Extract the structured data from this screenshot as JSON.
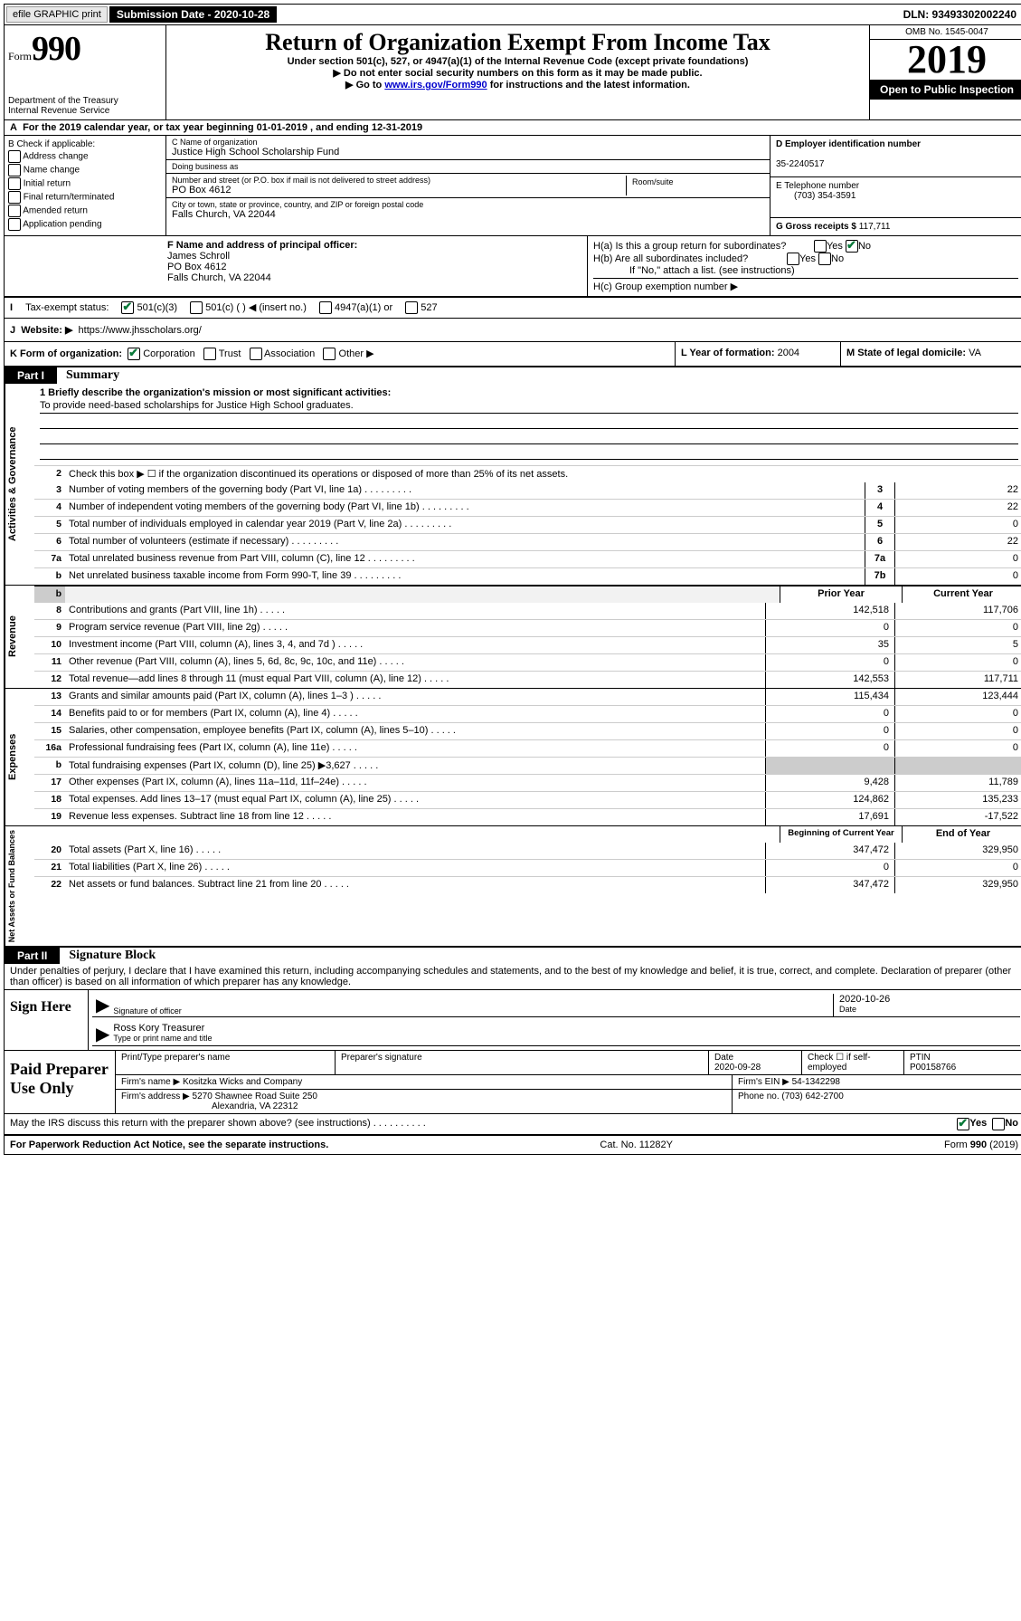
{
  "topbar": {
    "efile": "efile GRAPHIC print",
    "submission_label": "Submission Date - 2020-10-28",
    "dln": "DLN: 93493302002240"
  },
  "header": {
    "form_label": "Form",
    "form_num": "990",
    "dept1": "Department of the Treasury",
    "dept2": "Internal Revenue Service",
    "title": "Return of Organization Exempt From Income Tax",
    "subtitle": "Under section 501(c), 527, or 4947(a)(1) of the Internal Revenue Code (except private foundations)",
    "note1": "▶ Do not enter social security numbers on this form as it may be made public.",
    "note2_pre": "▶ Go to ",
    "note2_link": "www.irs.gov/Form990",
    "note2_post": " for instructions and the latest information.",
    "omb": "OMB No. 1545-0047",
    "year": "2019",
    "open": "Open to Public Inspection"
  },
  "period": "For the 2019 calendar year, or tax year beginning 01-01-2019    , and ending 12-31-2019",
  "sectionA_prefix": "A",
  "sectionB": {
    "label": "B Check if applicable:",
    "items": [
      "Address change",
      "Name change",
      "Initial return",
      "Final return/terminated",
      "Amended return",
      "Application pending"
    ]
  },
  "sectionC": {
    "name_label": "C Name of organization",
    "name": "Justice High School Scholarship Fund",
    "dba_label": "Doing business as",
    "dba": "",
    "addr_label": "Number and street (or P.O. box if mail is not delivered to street address)",
    "room_label": "Room/suite",
    "addr": "PO Box 4612",
    "city_label": "City or town, state or province, country, and ZIP or foreign postal code",
    "city": "Falls Church, VA  22044"
  },
  "sectionD": {
    "label": "D Employer identification number",
    "value": "35-2240517"
  },
  "sectionE": {
    "label": "E Telephone number",
    "value": "(703) 354-3591"
  },
  "sectionG": {
    "label": "G Gross receipts $",
    "value": "117,711"
  },
  "sectionF": {
    "label": "F  Name and address of principal officer:",
    "name": "James Schroll",
    "addr1": "PO Box 4612",
    "addr2": "Falls Church, VA  22044"
  },
  "sectionH": {
    "a": "H(a)  Is this a group return for subordinates?",
    "b": "H(b)  Are all subordinates included?",
    "note": "If \"No,\" attach a list. (see instructions)",
    "c": "H(c)  Group exemption number ▶",
    "yes": "Yes",
    "no": "No"
  },
  "sectionI": {
    "label": "Tax-exempt status:",
    "opts": [
      "501(c)(3)",
      "501(c) (  ) ◀ (insert no.)",
      "4947(a)(1) or",
      "527"
    ]
  },
  "sectionJ": {
    "label": "Website: ▶",
    "value": "https://www.jhsscholars.org/"
  },
  "sectionK": {
    "label": "K Form of organization:",
    "opts": [
      "Corporation",
      "Trust",
      "Association",
      "Other ▶"
    ]
  },
  "sectionL": {
    "label": "L Year of formation:",
    "value": "2004"
  },
  "sectionM": {
    "label": "M State of legal domicile:",
    "value": "VA"
  },
  "part1": {
    "tag": "Part I",
    "title": "Summary"
  },
  "mission": {
    "q1": "1   Briefly describe the organization's mission or most significant activities:",
    "text": "To provide need-based scholarships for Justice High School graduates.",
    "q2": "Check this box ▶ ☐  if the organization discontinued its operations or disposed of more than 25% of its net assets."
  },
  "govlines": [
    {
      "n": "2",
      "skip": true
    },
    {
      "n": "3",
      "d": "Number of voting members of the governing body (Part VI, line 1a)",
      "b": "3",
      "v": "22"
    },
    {
      "n": "4",
      "d": "Number of independent voting members of the governing body (Part VI, line 1b)",
      "b": "4",
      "v": "22"
    },
    {
      "n": "5",
      "d": "Total number of individuals employed in calendar year 2019 (Part V, line 2a)",
      "b": "5",
      "v": "0"
    },
    {
      "n": "6",
      "d": "Total number of volunteers (estimate if necessary)",
      "b": "6",
      "v": "22"
    },
    {
      "n": "7a",
      "d": "Total unrelated business revenue from Part VIII, column (C), line 12",
      "b": "7a",
      "v": "0"
    },
    {
      "n": "b",
      "d": "Net unrelated business taxable income from Form 990-T, line 39",
      "b": "7b",
      "v": "0"
    }
  ],
  "revhead": {
    "prior": "Prior Year",
    "current": "Current Year"
  },
  "revlines": [
    {
      "n": "8",
      "d": "Contributions and grants (Part VIII, line 1h)",
      "p": "142,518",
      "c": "117,706"
    },
    {
      "n": "9",
      "d": "Program service revenue (Part VIII, line 2g)",
      "p": "0",
      "c": "0"
    },
    {
      "n": "10",
      "d": "Investment income (Part VIII, column (A), lines 3, 4, and 7d )",
      "p": "35",
      "c": "5"
    },
    {
      "n": "11",
      "d": "Other revenue (Part VIII, column (A), lines 5, 6d, 8c, 9c, 10c, and 11e)",
      "p": "0",
      "c": "0"
    },
    {
      "n": "12",
      "d": "Total revenue—add lines 8 through 11 (must equal Part VIII, column (A), line 12)",
      "p": "142,553",
      "c": "117,711"
    }
  ],
  "explines": [
    {
      "n": "13",
      "d": "Grants and similar amounts paid (Part IX, column (A), lines 1–3 )",
      "p": "115,434",
      "c": "123,444"
    },
    {
      "n": "14",
      "d": "Benefits paid to or for members (Part IX, column (A), line 4)",
      "p": "0",
      "c": "0"
    },
    {
      "n": "15",
      "d": "Salaries, other compensation, employee benefits (Part IX, column (A), lines 5–10)",
      "p": "0",
      "c": "0"
    },
    {
      "n": "16a",
      "d": "Professional fundraising fees (Part IX, column (A), line 11e)",
      "p": "0",
      "c": "0"
    },
    {
      "n": "b",
      "d": "Total fundraising expenses (Part IX, column (D), line 25) ▶3,627",
      "p": "shade",
      "c": "shade"
    },
    {
      "n": "17",
      "d": "Other expenses (Part IX, column (A), lines 11a–11d, 11f–24e)",
      "p": "9,428",
      "c": "11,789"
    },
    {
      "n": "18",
      "d": "Total expenses. Add lines 13–17 (must equal Part IX, column (A), line 25)",
      "p": "124,862",
      "c": "135,233"
    },
    {
      "n": "19",
      "d": "Revenue less expenses. Subtract line 18 from line 12",
      "p": "17,691",
      "c": "-17,522"
    }
  ],
  "nethead": {
    "prior": "Beginning of Current Year",
    "current": "End of Year"
  },
  "netlines": [
    {
      "n": "20",
      "d": "Total assets (Part X, line 16)",
      "p": "347,472",
      "c": "329,950"
    },
    {
      "n": "21",
      "d": "Total liabilities (Part X, line 26)",
      "p": "0",
      "c": "0"
    },
    {
      "n": "22",
      "d": "Net assets or fund balances. Subtract line 21 from line 20",
      "p": "347,472",
      "c": "329,950"
    }
  ],
  "vtabs": {
    "gov": "Activities & Governance",
    "rev": "Revenue",
    "exp": "Expenses",
    "net": "Net Assets or Fund Balances"
  },
  "part2": {
    "tag": "Part II",
    "title": "Signature Block"
  },
  "perjury": "Under penalties of perjury, I declare that I have examined this return, including accompanying schedules and statements, and to the best of my knowledge and belief, it is true, correct, and complete. Declaration of preparer (other than officer) is based on all information of which preparer has any knowledge.",
  "sign": {
    "here": "Sign Here",
    "sig_label": "Signature of officer",
    "date": "2020-10-26",
    "date_label": "Date",
    "name": "Ross Kory Treasurer",
    "name_label": "Type or print name and title"
  },
  "prep": {
    "here": "Paid Preparer Use Only",
    "h1": "Print/Type preparer's name",
    "h2": "Preparer's signature",
    "h3": "Date",
    "date": "2020-09-28",
    "h4": "Check ☐ if self-employed",
    "h5": "PTIN",
    "ptin": "P00158766",
    "firm_label": "Firm's name    ▶",
    "firm": "Kositzka Wicks and Company",
    "ein_label": "Firm's EIN ▶",
    "ein": "54-1342298",
    "addr_label": "Firm's address ▶",
    "addr1": "5270 Shawnee Road Suite 250",
    "addr2": "Alexandria, VA  22312",
    "phone_label": "Phone no.",
    "phone": "(703) 642-2700"
  },
  "discuss": "May the IRS discuss this return with the preparer shown above? (see instructions)",
  "footer": {
    "pra": "For Paperwork Reduction Act Notice, see the separate instructions.",
    "cat": "Cat. No. 11282Y",
    "form": "Form 990 (2019)"
  }
}
